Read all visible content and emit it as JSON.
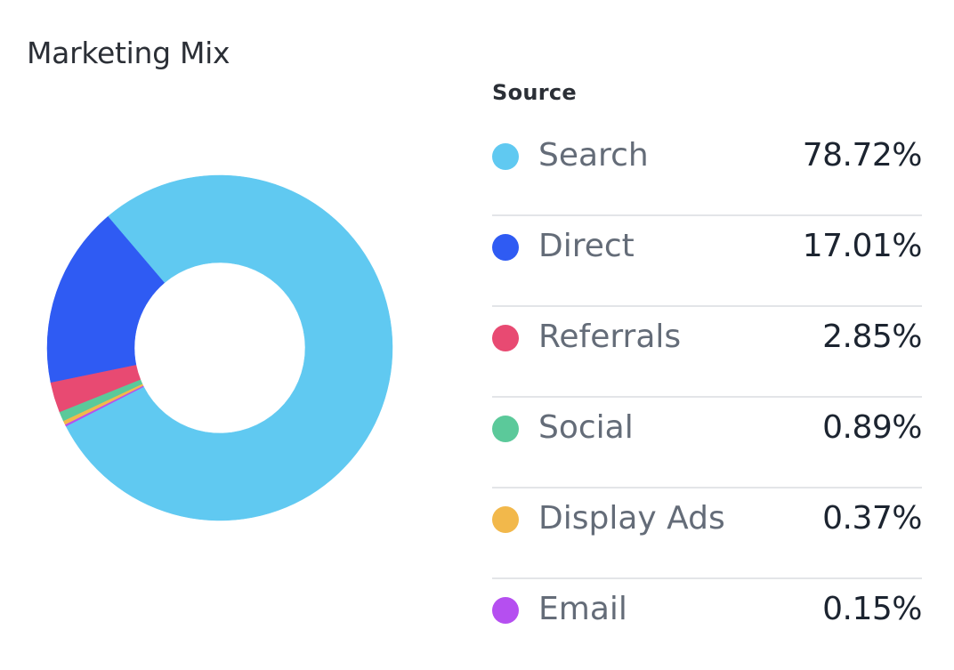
{
  "title": "Marketing Mix",
  "legend_header": "Source",
  "chart_data": {
    "type": "pie",
    "variant": "donut",
    "title": "Marketing Mix",
    "legend_title": "Source",
    "legend_placement": "right",
    "slices": [
      {
        "label": "Search",
        "value": 78.72,
        "display": "78.72%",
        "color": "#60c9f1"
      },
      {
        "label": "Direct",
        "value": 17.01,
        "display": "17.01%",
        "color": "#2f5bf3"
      },
      {
        "label": "Referrals",
        "value": 2.85,
        "display": "2.85%",
        "color": "#e84a72"
      },
      {
        "label": "Social",
        "value": 0.89,
        "display": "0.89%",
        "color": "#5bc99a"
      },
      {
        "label": "Display Ads",
        "value": 0.37,
        "display": "0.37%",
        "color": "#f2b84b"
      },
      {
        "label": "Email",
        "value": 0.15,
        "display": "0.15%",
        "color": "#b54ff0"
      }
    ]
  }
}
